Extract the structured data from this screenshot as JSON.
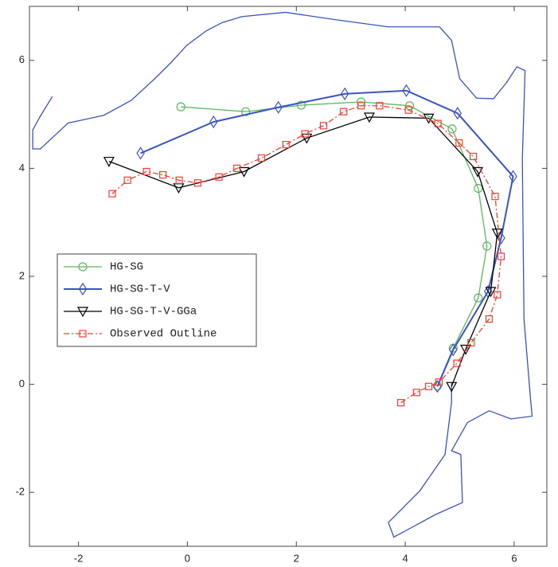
{
  "chart_data": {
    "type": "line",
    "xlim": [
      -2.9,
      6.6
    ],
    "ylim": [
      -3,
      7
    ],
    "xticks": [
      -2,
      0,
      2,
      4,
      6
    ],
    "yticks": [
      -2,
      0,
      2,
      4,
      6
    ],
    "grid": false,
    "legend_loc": "west",
    "series": [
      {
        "color": "#3a53c5",
        "width": 1.3,
        "marker": "none",
        "dash": "solid",
        "x": [
          -2.48,
          -2.71,
          -2.84,
          -2.84,
          -2.7,
          -2.19,
          -1.54,
          -1.03,
          -0.6,
          -0.3,
          -0.01,
          0.35,
          0.64,
          1.0,
          1.8,
          2.67,
          3.69,
          4.63,
          4.85,
          5.0,
          5.31,
          5.62,
          5.86,
          6.05,
          6.2,
          6.15,
          6.18,
          6.3,
          6.33,
          5.94,
          5.54,
          5.14,
          4.85,
          5.02,
          5.05,
          4.56,
          3.79,
          3.69,
          4.27,
          4.73,
          4.85,
          4.85
        ],
        "values": [
          5.33,
          4.95,
          4.71,
          4.36,
          4.36,
          4.84,
          4.98,
          5.26,
          5.66,
          5.96,
          6.28,
          6.55,
          6.7,
          6.81,
          6.89,
          6.76,
          6.62,
          6.62,
          6.37,
          5.66,
          5.3,
          5.29,
          5.59,
          5.88,
          5.81,
          4.18,
          1.21,
          -0.27,
          -0.59,
          -0.64,
          -0.49,
          -0.71,
          -1.23,
          -1.3,
          -2.19,
          -2.41,
          -2.83,
          -2.56,
          -1.97,
          -1.3,
          -0.34,
          0.03
        ]
      },
      {
        "name": "HG-SG",
        "color": "#5cb85c",
        "width": 1.3,
        "marker": "circle",
        "dash": "solid",
        "x": [
          -0.12,
          1.07,
          2.09,
          3.19,
          4.08,
          4.86,
          5.34,
          5.5,
          5.34,
          4.88,
          4.59
        ],
        "values": [
          5.14,
          5.05,
          5.17,
          5.23,
          5.16,
          4.73,
          3.63,
          2.56,
          1.6,
          0.67,
          -0.03
        ]
      },
      {
        "name": "HG-SG-T-V",
        "color": "#3a53c5",
        "width": 2,
        "marker": "diamond",
        "dash": "solid",
        "x": [
          -0.86,
          0.48,
          1.67,
          2.89,
          4.02,
          4.96,
          5.98,
          5.76,
          5.52,
          4.88,
          4.59
        ],
        "values": [
          4.28,
          4.86,
          5.13,
          5.38,
          5.44,
          5.02,
          3.85,
          2.71,
          1.72,
          0.64,
          -0.04
        ]
      },
      {
        "name": "HG-SG-T-V-GGa",
        "color": "#000000",
        "width": 1.3,
        "marker": "triangle-down",
        "dash": "solid",
        "x": [
          -1.44,
          -0.16,
          1.04,
          2.19,
          3.34,
          4.43,
          5.33,
          5.69,
          5.57,
          5.11,
          4.85
        ],
        "values": [
          4.13,
          3.64,
          3.94,
          4.56,
          4.95,
          4.93,
          3.94,
          2.8,
          1.72,
          0.65,
          -0.04
        ]
      },
      {
        "name": "Observed Outline",
        "color": "#ff3b2f",
        "width": 1.3,
        "marker": "square",
        "dash": "dashdot",
        "x": [
          -1.38,
          -1.1,
          -0.75,
          -0.45,
          -0.15,
          0.19,
          0.58,
          0.91,
          1.36,
          1.81,
          2.16,
          2.5,
          2.87,
          3.19,
          3.53,
          4.06,
          4.6,
          4.99,
          5.25,
          5.65,
          5.76,
          5.69,
          5.54,
          5.21,
          4.95,
          4.62,
          4.43,
          4.21,
          3.92
        ],
        "values": [
          3.53,
          3.78,
          3.94,
          3.88,
          3.78,
          3.73,
          3.84,
          4.0,
          4.19,
          4.44,
          4.64,
          4.79,
          5.05,
          5.16,
          5.16,
          5.08,
          4.83,
          4.47,
          4.22,
          3.48,
          2.37,
          1.66,
          1.21,
          0.77,
          0.39,
          0.04,
          -0.04,
          -0.15,
          -0.34
        ]
      }
    ]
  }
}
